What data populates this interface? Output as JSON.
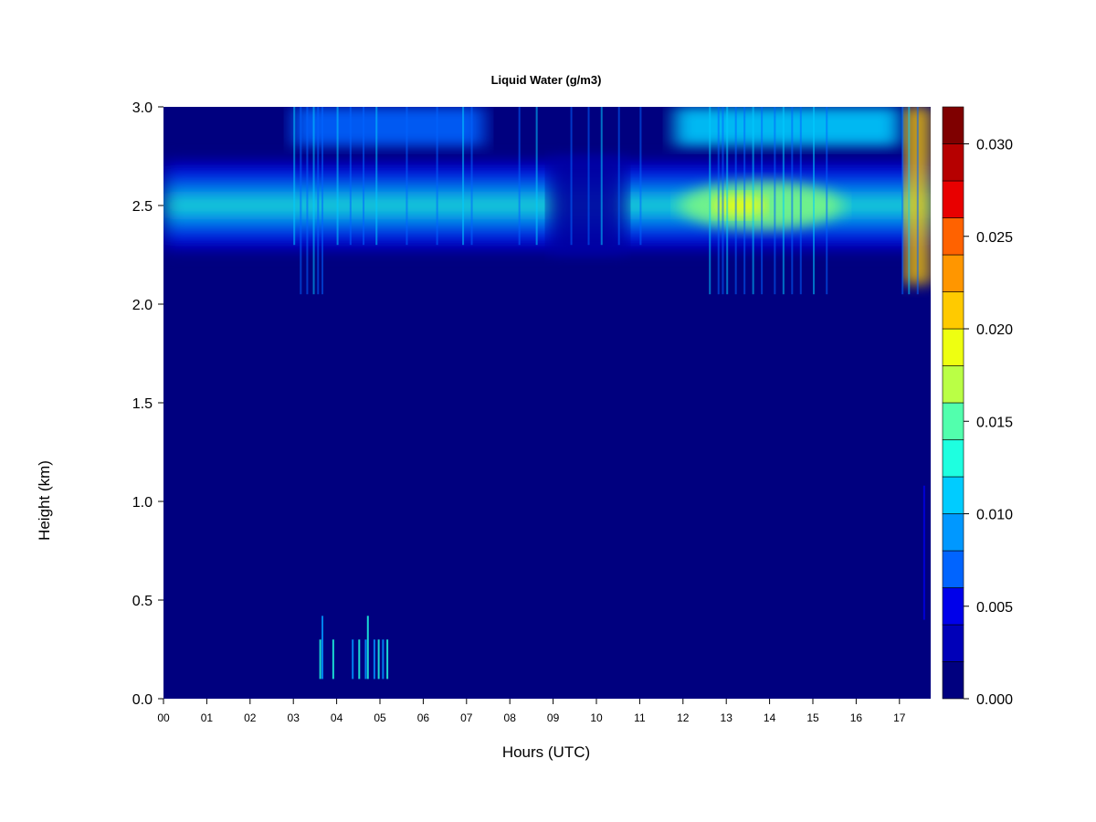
{
  "chart_data": {
    "type": "heatmap",
    "title": "Liquid Water (g/m3)",
    "xlabel": "Hours (UTC)",
    "ylabel": "Height (km)",
    "x_ticks": [
      "00",
      "01",
      "02",
      "03",
      "04",
      "05",
      "06",
      "07",
      "08",
      "09",
      "10",
      "11",
      "12",
      "13",
      "14",
      "15",
      "16",
      "17"
    ],
    "x_range_hours": [
      0,
      17.7
    ],
    "y_ticks": [
      "0.0",
      "0.5",
      "1.0",
      "1.5",
      "2.0",
      "2.5",
      "3.0"
    ],
    "y_range_km": [
      0,
      3.0
    ],
    "colorbar_ticks": [
      "0.000",
      "0.005",
      "0.010",
      "0.015",
      "0.020",
      "0.025",
      "0.030"
    ],
    "colorbar_range": [
      0,
      0.032
    ],
    "colorbar_levels": 16,
    "colormap": [
      "#00007f",
      "#0000b8",
      "#0000ea",
      "#0030ff",
      "#0064ff",
      "#0098ff",
      "#00ccff",
      "#1effe0",
      "#52ffad",
      "#86ff79",
      "#baff45",
      "#eeff11",
      "#ffca00",
      "#ff9600",
      "#ff6200",
      "#ff2e00",
      "#e80000",
      "#b60000",
      "#7f0000"
    ],
    "grid": false,
    "features": [
      {
        "hour_start": 0,
        "hour_end": 17.7,
        "height_km": 2.5,
        "peak_g_m3": 0.014,
        "description": "persistent cloud layer"
      },
      {
        "hour_start": 12.5,
        "hour_end": 15.5,
        "height_km": 2.5,
        "peak_g_m3": 0.021
      },
      {
        "hour_start": 17.1,
        "hour_end": 17.7,
        "height_km": 2.6,
        "peak_g_m3": 0.026
      },
      {
        "hour_start": 3.6,
        "hour_end": 5.2,
        "height_km": 0.2,
        "peak_g_m3": 0.012
      }
    ]
  }
}
